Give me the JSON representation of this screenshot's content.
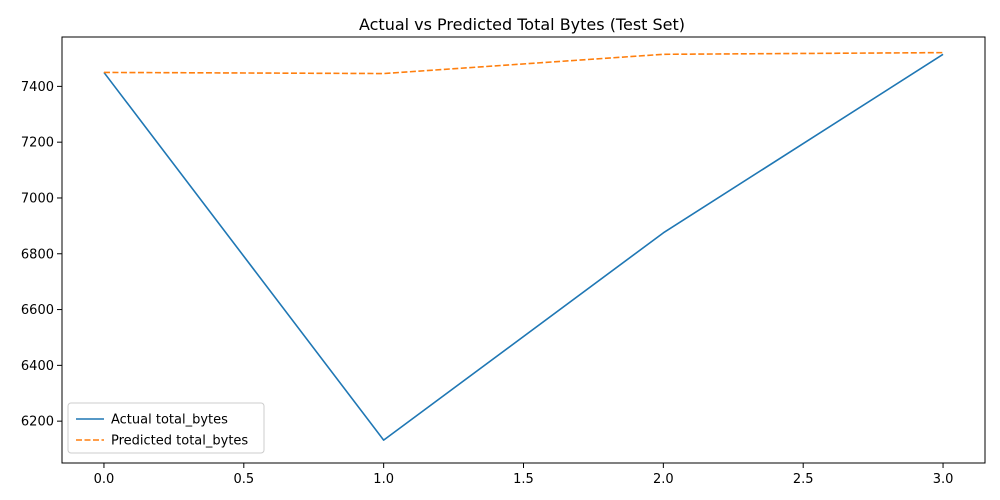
{
  "chart_data": {
    "type": "line",
    "title": "Actual vs Predicted Total Bytes (Test Set)",
    "xlabel": "",
    "ylabel": "",
    "x": [
      0,
      1,
      2,
      3
    ],
    "xlim": [
      -0.15,
      3.15
    ],
    "ylim": [
      6050,
      7577
    ],
    "xticks": [
      0.0,
      0.5,
      1.0,
      1.5,
      2.0,
      2.5,
      3.0
    ],
    "xtick_labels": [
      "0.0",
      "0.5",
      "1.0",
      "1.5",
      "2.0",
      "2.5",
      "3.0"
    ],
    "yticks": [
      6200,
      6400,
      6600,
      6800,
      7000,
      7200,
      7400
    ],
    "ytick_labels": [
      "6200",
      "6400",
      "6600",
      "6800",
      "7000",
      "7200",
      "7400"
    ],
    "grid": false,
    "legend_position": "lower-left",
    "series": [
      {
        "name": "Actual total_bytes",
        "values": [
          7450,
          6132,
          6875,
          7515
        ],
        "color": "#1f77b4",
        "style": "solid"
      },
      {
        "name": "Predicted total_bytes",
        "values": [
          7450,
          7446,
          7515,
          7521
        ],
        "color": "#ff7f0e",
        "style": "dashed"
      }
    ]
  }
}
